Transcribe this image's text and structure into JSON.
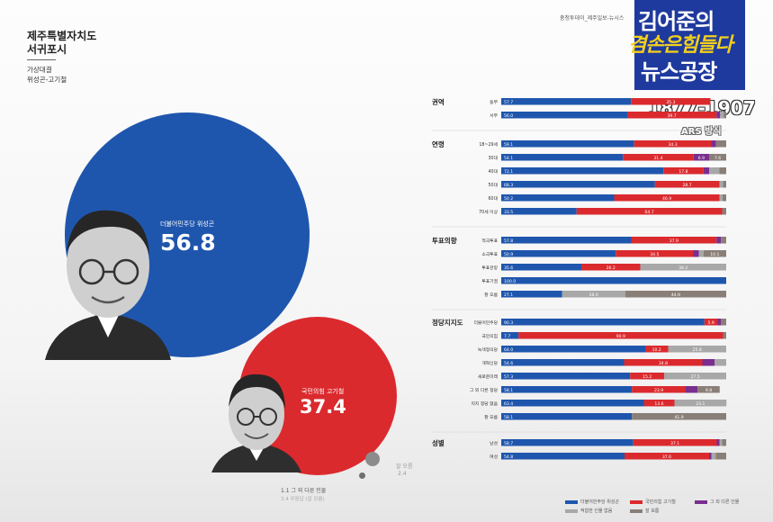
{
  "region": {
    "line1": "제주특별자치도",
    "line2": "서귀포시"
  },
  "poll_label": {
    "line1": "가상대결",
    "line2": "위성곤-고기철"
  },
  "source_note": "충청투데이_제주일보-뉴시스",
  "badge": {
    "line1": "김어준의",
    "line2": "겸손은힘들다",
    "line3": "뉴스공장"
  },
  "num_sep": "1877-1907",
  "ars": "ARS 방식",
  "candidates": [
    {
      "label": "더불어민주당 위성곤",
      "value": 56.8,
      "color": "#1f56ad"
    },
    {
      "label": "국민의힘 고기철",
      "value": 37.4,
      "color": "#db2a2e"
    }
  ],
  "others": {
    "label": "1.1  그 외 다른 인물",
    "sub": "3.4 무응답 (잘 모름)",
    "nores_label": "잘 모름",
    "nores_value": "2.4"
  },
  "colors": {
    "blue": "#1f56ad",
    "red": "#db2a2e",
    "purple": "#7a2e8e",
    "gray": "#a8a8a8",
    "brown": "#8a7f78"
  },
  "chart_data": {
    "type": "bar",
    "orientation": "horizontal",
    "stacked": true,
    "xlim": [
      0,
      100
    ],
    "legend_position": "bottom-right",
    "legend": [
      "더불어민주당 위성곤",
      "국민의힘 고기철",
      "그 외 다른 인물",
      "적합한 인물 없음",
      "잘 모름"
    ],
    "groups": [
      {
        "title": "권역",
        "rows": [
          {
            "label": "동부",
            "values": [
              57.7,
              35.3,
              0,
              0,
              0
            ]
          },
          {
            "label": "서부",
            "values": [
              56.0,
              39.7,
              1.6,
              1.6,
              1.1
            ]
          }
        ]
      },
      {
        "title": "연령",
        "rows": [
          {
            "label": "18~29세",
            "values": [
              59.1,
              34.3,
              2.1,
              0,
              4.5
            ]
          },
          {
            "label": "30대",
            "values": [
              54.1,
              31.4,
              6.9,
              0,
              7.6
            ]
          },
          {
            "label": "40대",
            "values": [
              72.1,
              17.8,
              2.5,
              4.6,
              3.0
            ]
          },
          {
            "label": "50대",
            "values": [
              68.3,
              28.7,
              0,
              1.5,
              1.5
            ]
          },
          {
            "label": "60대",
            "values": [
              50.2,
              46.9,
              0,
              1.3,
              1.6
            ]
          },
          {
            "label": "70세 이상",
            "values": [
              33.5,
              64.7,
              0,
              0,
              1.8
            ]
          }
        ]
      },
      {
        "title": "투표의향",
        "rows": [
          {
            "label": "적극투표",
            "values": [
              57.8,
              37.9,
              2.0,
              0,
              2.3
            ]
          },
          {
            "label": "소극투표",
            "values": [
              50.9,
              34.5,
              2.5,
              2.0,
              10.1
            ]
          },
          {
            "label": "투표관망",
            "values": [
              35.6,
              26.2,
              0,
              38.2,
              0
            ]
          },
          {
            "label": "투표기권",
            "values": [
              100.0,
              0,
              0,
              0,
              0
            ]
          },
          {
            "label": "잘 모름",
            "values": [
              27.1,
              0,
              0,
              28.0,
              44.9
            ]
          }
        ]
      },
      {
        "title": "정당지지도",
        "rows": [
          {
            "label": "더불어민주당",
            "values": [
              90.3,
              5.9,
              1.4,
              0,
              2.4
            ]
          },
          {
            "label": "국민의힘",
            "values": [
              7.7,
              90.9,
              0,
              0,
              1.4
            ]
          },
          {
            "label": "녹색정의당",
            "values": [
              64.0,
              10.2,
              0,
              25.8,
              0
            ]
          },
          {
            "label": "개혁신당",
            "values": [
              54.6,
              34.8,
              5.5,
              5.1,
              0
            ]
          },
          {
            "label": "새로운미래",
            "values": [
              57.3,
              15.2,
              0,
              27.5,
              0
            ]
          },
          {
            "label": "그 외 다른 정당",
            "values": [
              58.1,
              23.9,
              5.3,
              0,
              9.8
            ]
          },
          {
            "label": "지지 정당 없음",
            "values": [
              63.4,
              13.6,
              0,
              23.1,
              0
            ]
          },
          {
            "label": "잘 모름",
            "values": [
              58.1,
              0,
              0,
              0,
              41.9
            ]
          }
        ]
      },
      {
        "title": "성별",
        "rows": [
          {
            "label": "남성",
            "values": [
              58.7,
              37.1,
              1.2,
              1.1,
              1.9
            ]
          },
          {
            "label": "여성",
            "values": [
              54.8,
              37.6,
              1.0,
              2.0,
              4.6
            ]
          }
        ]
      }
    ]
  }
}
